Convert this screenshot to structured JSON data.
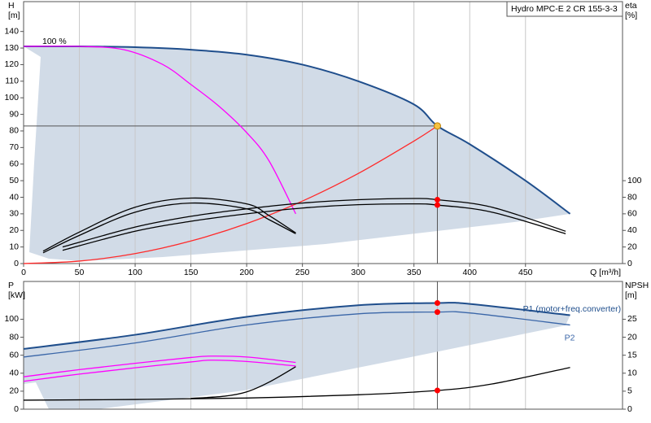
{
  "chart_data": [
    {
      "type": "line",
      "title": "Hydro MPC-E 2 CR 155-3-3",
      "annotation": "100 %",
      "xlabel": "Q [m³/h]",
      "ylabel": [
        "H",
        "[m]"
      ],
      "y2label": [
        "eta",
        "[%]"
      ],
      "xlim": [
        0,
        537
      ],
      "xticks": [
        0,
        50,
        100,
        150,
        200,
        250,
        300,
        350,
        400,
        450
      ],
      "ylim": [
        0,
        158
      ],
      "yticks": [
        0,
        10,
        20,
        30,
        40,
        50,
        60,
        70,
        80,
        90,
        100,
        110,
        120,
        130,
        140
      ],
      "y2lim": [
        0,
        316
      ],
      "y2ticks": [
        0,
        20,
        40,
        60,
        80,
        100
      ],
      "grid": true,
      "series": [
        {
          "color": "#1f4e8c",
          "x": [
            0,
            50,
            100,
            150,
            200,
            250,
            300,
            350,
            371,
            400,
            450,
            490
          ],
          "values": [
            131,
            131,
            130.5,
            129,
            126,
            120,
            110,
            96,
            83,
            72,
            50,
            30
          ]
        },
        {
          "color": "#ff00ff",
          "x": [
            0,
            50,
            90,
            125,
            150,
            175,
            200,
            220,
            244
          ],
          "values": [
            131,
            131,
            129,
            120,
            108,
            95,
            79,
            62,
            30
          ]
        },
        {
          "color": "#ff2a2a",
          "x": [
            0,
            50,
            100,
            150,
            200,
            250,
            300,
            350,
            371
          ],
          "values": [
            0,
            1.5,
            6,
            13.6,
            24.1,
            37.7,
            54.3,
            73.9,
            83
          ]
        },
        {
          "color": "#000000",
          "axis": "y2",
          "x": [
            35,
            100,
            150,
            200,
            250,
            300,
            350,
            371,
            420,
            486
          ],
          "values": [
            20,
            44,
            57,
            66,
            73,
            77,
            78.5,
            77,
            68,
            39
          ]
        },
        {
          "color": "#000000",
          "axis": "y2",
          "x": [
            35,
            100,
            150,
            200,
            250,
            300,
            350,
            371,
            420,
            486
          ],
          "values": [
            16,
            39,
            51,
            60,
            67,
            71,
            72,
            70.6,
            62,
            36
          ]
        },
        {
          "color": "#000000",
          "axis": "y2",
          "x": [
            17.5,
            50,
            100,
            150,
            200,
            220,
            244
          ],
          "values": [
            15,
            38,
            68,
            79,
            72,
            58,
            37
          ]
        },
        {
          "color": "#000000",
          "axis": "y2",
          "x": [
            17.5,
            50,
            100,
            150,
            200,
            220,
            244
          ],
          "values": [
            13,
            34,
            62,
            73,
            66,
            53,
            36
          ]
        }
      ],
      "duty_point": {
        "x": 371,
        "y": 83,
        "color": "#f5c242"
      },
      "markers": [
        {
          "x": 371,
          "y": 77,
          "axis": "y2"
        },
        {
          "x": 371,
          "y": 70.6,
          "axis": "y2"
        }
      ],
      "marker_color": "#ff0000"
    },
    {
      "type": "line",
      "ylabel": [
        "P",
        "[kW]"
      ],
      "y2label": [
        "NPSH",
        "[m]"
      ],
      "xlim": [
        0,
        537
      ],
      "ylim": [
        0,
        142
      ],
      "yticks": [
        0,
        20,
        40,
        60,
        80,
        100
      ],
      "y2lim": [
        0,
        35.5
      ],
      "y2ticks": [
        0,
        5,
        10,
        15,
        20,
        25
      ],
      "grid": true,
      "series": [
        {
          "name": "P1 (motor+freq.converter)",
          "color": "#1f4e8c",
          "x": [
            0,
            100,
            200,
            300,
            371,
            400,
            490
          ],
          "values": [
            67,
            82.7,
            102.7,
            115.5,
            118,
            117,
            104.5
          ]
        },
        {
          "name": "P2",
          "color": "#3a66a8",
          "x": [
            0,
            100,
            200,
            300,
            371,
            400,
            490
          ],
          "values": [
            58,
            73.6,
            93.6,
            106,
            108,
            107,
            93.6
          ]
        },
        {
          "color": "#ff00ff",
          "x": [
            0,
            50,
            100,
            150,
            168,
            200,
            244
          ],
          "values": [
            36,
            44,
            51,
            57.5,
            59,
            58,
            52
          ]
        },
        {
          "color": "#ff00ff",
          "x": [
            0,
            50,
            100,
            150,
            168,
            200,
            244
          ],
          "values": [
            31,
            39,
            46,
            52.5,
            54.5,
            53,
            48
          ]
        },
        {
          "color": "#000000",
          "axis": "y2",
          "x": [
            0,
            100,
            200,
            300,
            371,
            420,
            490
          ],
          "values": [
            2.5,
            2.7,
            3.1,
            4,
            5.2,
            7,
            11.6
          ]
        },
        {
          "color": "#000000",
          "axis": "y2",
          "x": [
            150,
            180,
            200,
            220,
            244
          ],
          "values": [
            3,
            3.6,
            4.8,
            7.5,
            11.8
          ]
        }
      ],
      "markers": [
        {
          "x": 371,
          "y": 118
        },
        {
          "x": 371,
          "y": 108
        },
        {
          "x": 371,
          "y": 5.2,
          "axis": "y2"
        }
      ],
      "marker_color": "#ff0000"
    }
  ]
}
